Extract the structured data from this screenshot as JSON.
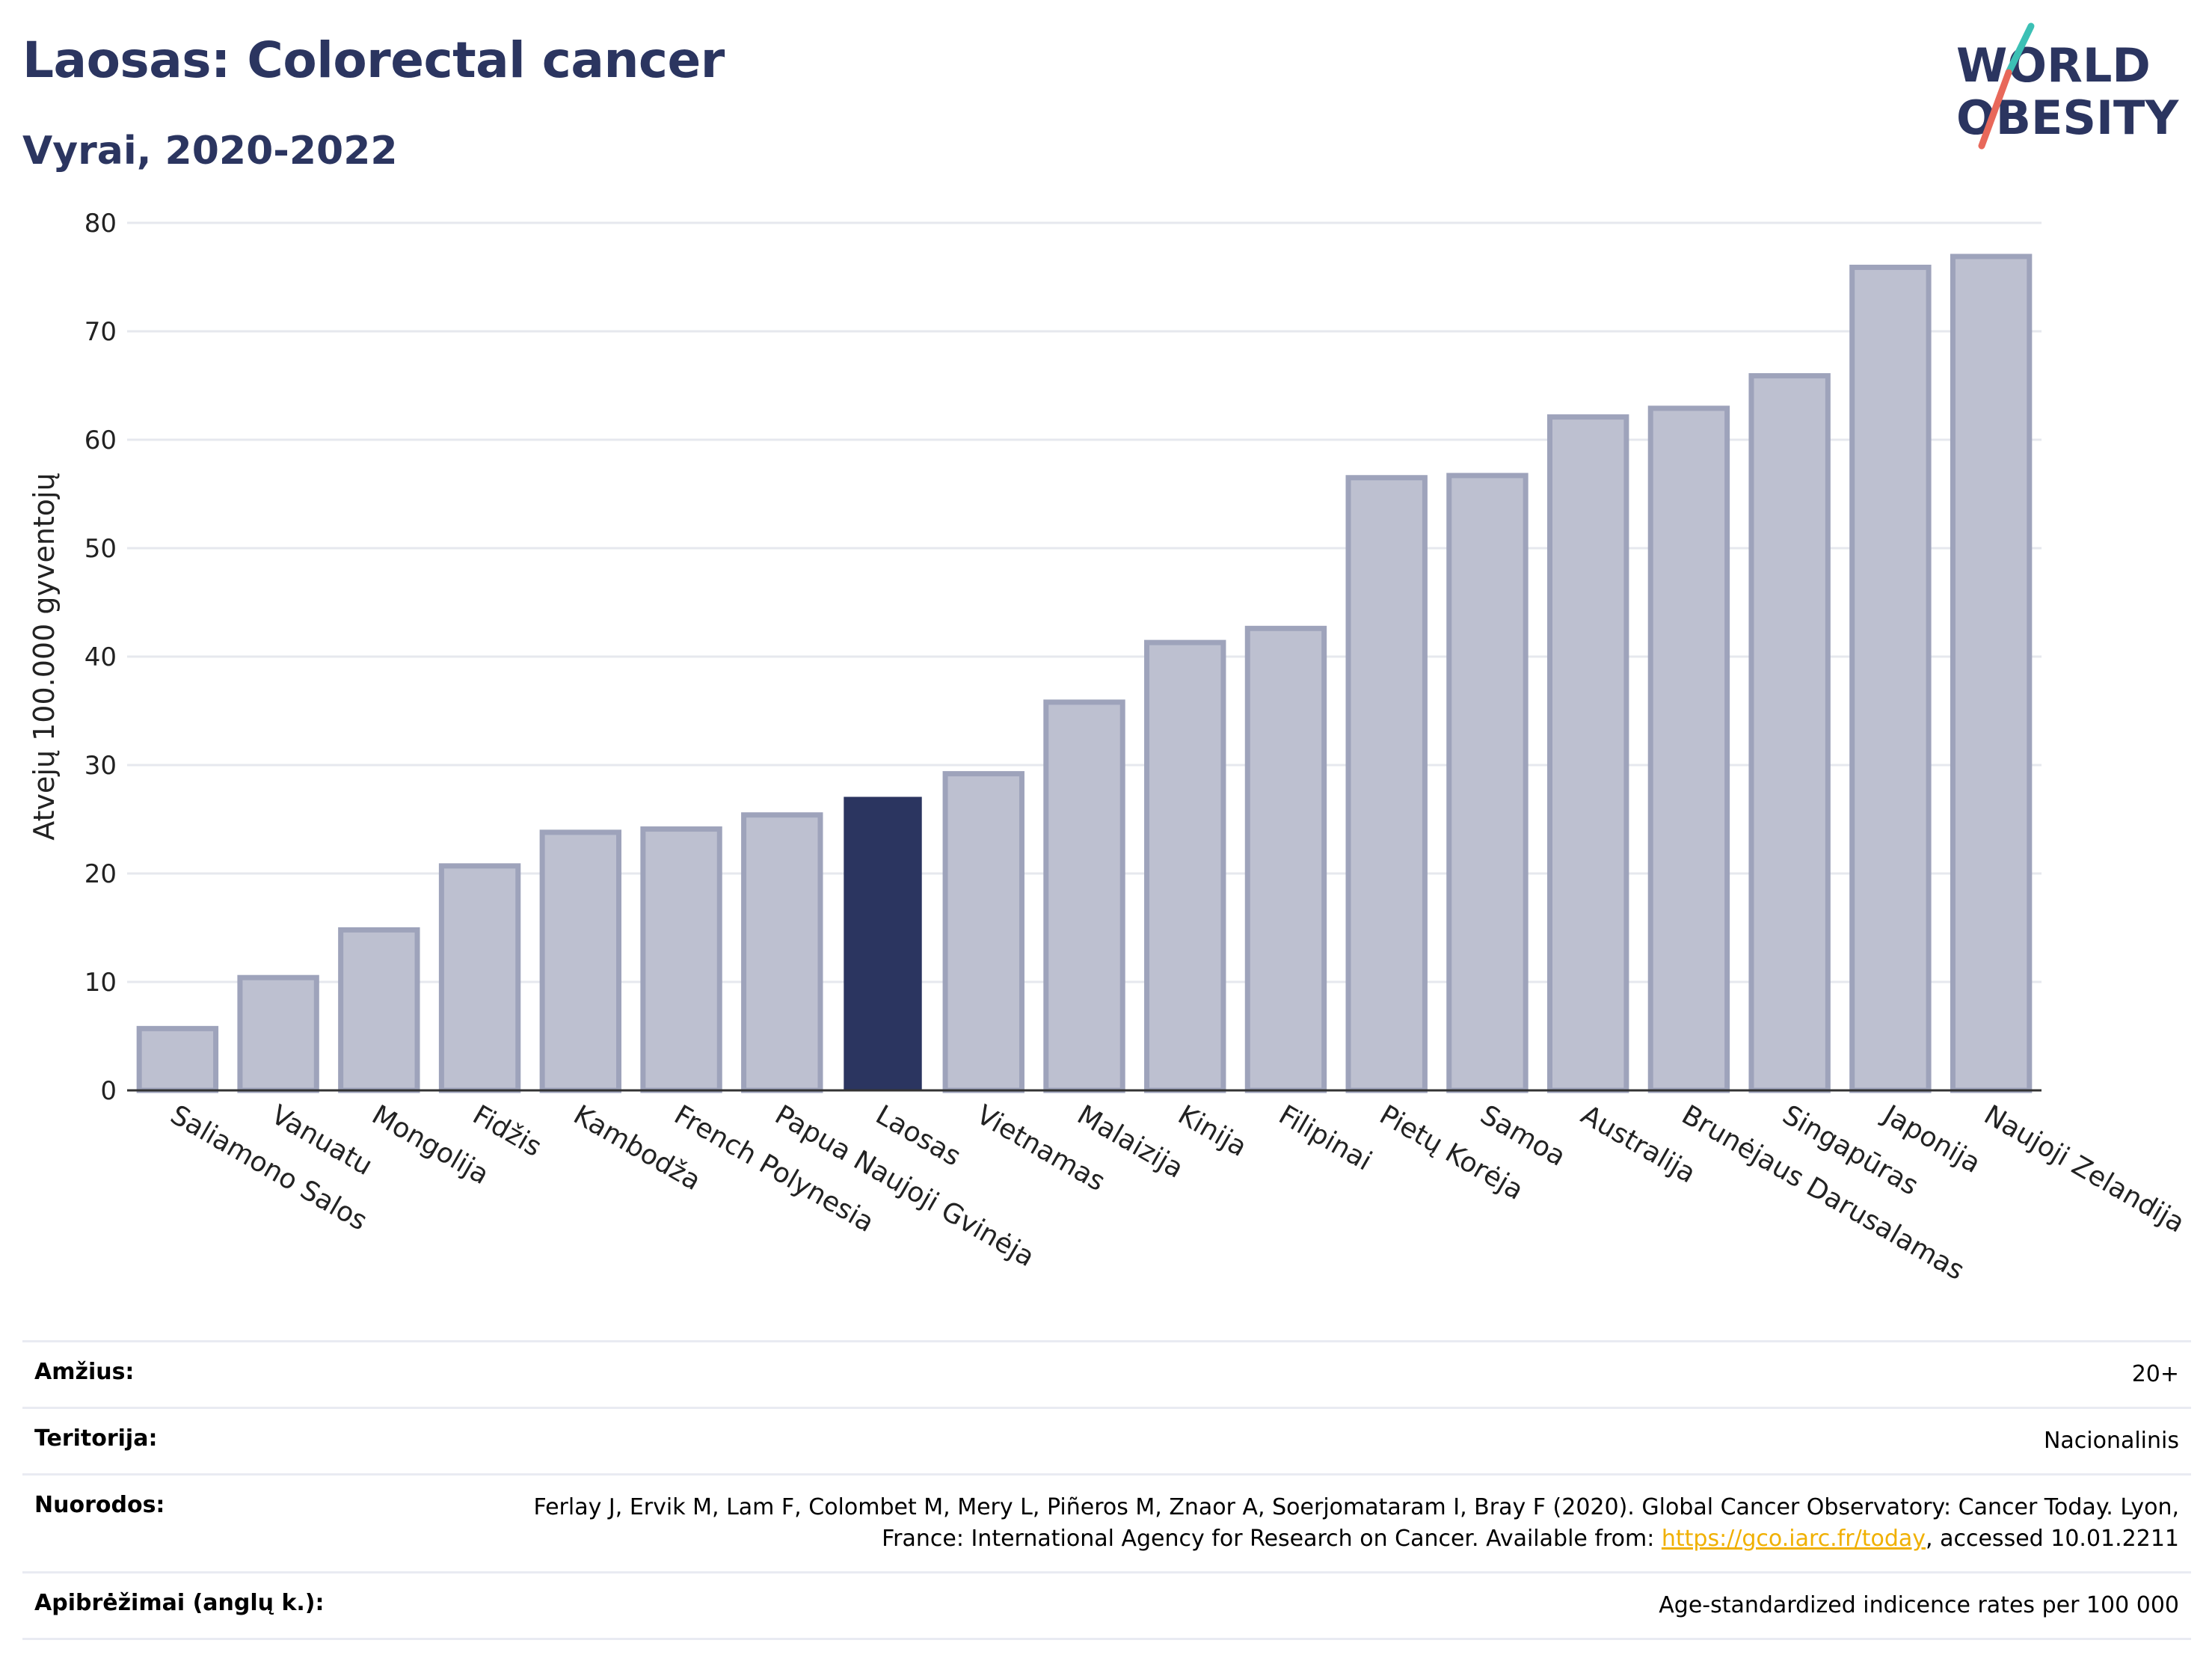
{
  "header": {
    "title": "Laosas: Colorectal cancer",
    "subtitle": "Vyrai, 2020-2022"
  },
  "logo": {
    "line1": "WORLD",
    "line2": "OBESITY",
    "text_color": "#2b3560",
    "slash_colors": [
      "#3cc0b5",
      "#e8685a"
    ]
  },
  "colors": {
    "bar": "#bdc0d0",
    "bar_border": "#9ea3bb",
    "highlight": "#2b3560",
    "grid": "#e6e8ee",
    "axis_text": "#222222"
  },
  "chart_data": {
    "type": "bar",
    "ylabel": "Atvejų 100.000 gyventojų",
    "xlabel": "",
    "ylim": [
      0,
      80
    ],
    "yticks": [
      0,
      10,
      20,
      30,
      40,
      50,
      60,
      70,
      80
    ],
    "grid": true,
    "highlight": "Laosas",
    "categories": [
      "Saliamono Salos",
      "Vanuatu",
      "Mongolija",
      "Fidžis",
      "Kambodža",
      "French Polynesia",
      "Papua Naujoji Gvinėja",
      "Laosas",
      "Vietnamas",
      "Malaizija",
      "Kinija",
      "Filipinai",
      "Pietų Korėja",
      "Samoa",
      "Australija",
      "Brunėjaus Darusalamas",
      "Singapūras",
      "Japonija",
      "Naujoji Zelandija"
    ],
    "values": [
      5.7,
      10.4,
      14.8,
      20.7,
      23.8,
      24.1,
      25.4,
      27.0,
      29.2,
      35.8,
      41.3,
      42.6,
      56.5,
      56.7,
      62.1,
      62.9,
      65.9,
      75.9,
      76.9
    ]
  },
  "meta": [
    {
      "label": "Amžius:",
      "value": "20+"
    },
    {
      "label": "Teritorija:",
      "value": "Nacionalinis"
    },
    {
      "label": "Nuorodos:",
      "value": "Ferlay J, Ervik M, Lam F, Colombet M, Mery L, Piñeros M, Znaor A, Soerjomataram I, Bray F (2020). Global Cancer Observatory: Cancer Today. Lyon, France: International Agency for Research on Cancer. Available from: ",
      "link": "https://gco.iarc.fr/today",
      "suffix": ", accessed 10.01.2211"
    },
    {
      "label": "Apibrėžimai (anglų k.):",
      "value": "Age-standardized indicence rates per 100 000"
    }
  ]
}
